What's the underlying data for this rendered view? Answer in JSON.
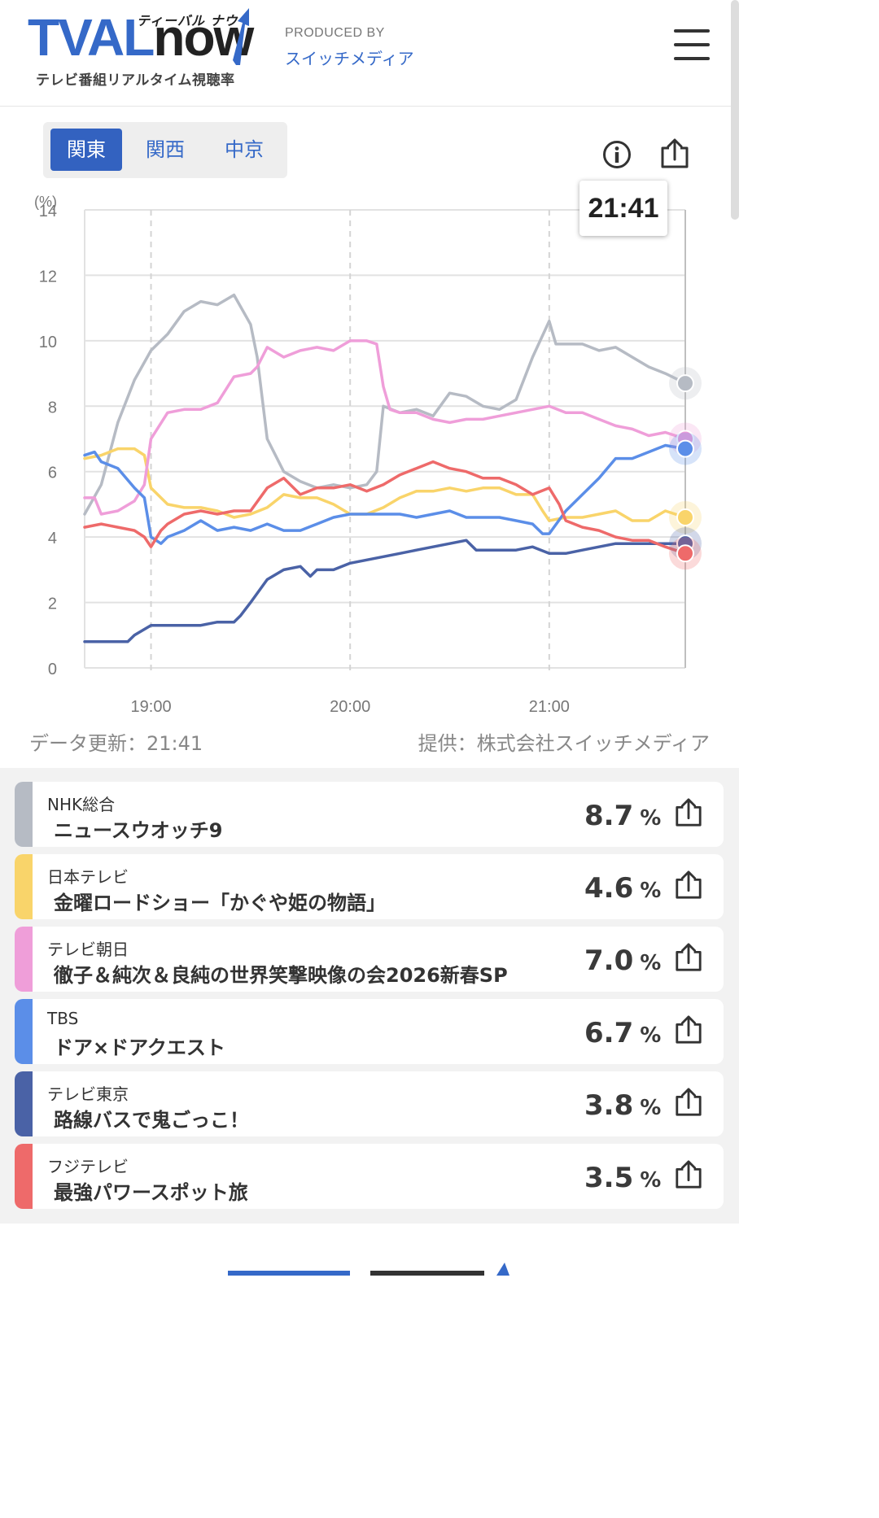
{
  "header": {
    "logo_main_a": "TVAL",
    "logo_main_b": "now",
    "logo_kana": "ティーバル ナウ",
    "logo_sub": "テレビ番組リアルタイム視聴率",
    "producer_label": "PRODUCED BY",
    "producer_name": "スイッチメディア",
    "menu_icon": "hamburger-menu-icon"
  },
  "regions": [
    {
      "label": "関東",
      "active": true
    },
    {
      "label": "関西",
      "active": false
    },
    {
      "label": "中京",
      "active": false
    }
  ],
  "toolbar": {
    "info_icon": "info-icon",
    "share_icon": "share-icon"
  },
  "tooltip_time": "21:41",
  "meta": {
    "updated": "データ更新：21:41",
    "provider": "提供：株式会社スイッチメディア"
  },
  "colors": {
    "nhk": "#b6bbc4",
    "ntv": "#f9d46a",
    "tvasahi": "#ef9ed9",
    "tbs": "#5b8ee8",
    "tvtokyo": "#4a62a6",
    "fuji": "#ee6a6a",
    "accent": "#3362c0"
  },
  "channels": [
    {
      "key": "nhk",
      "channel": "NHK総合",
      "program": "ニュースウオッチ9",
      "value": "8.7"
    },
    {
      "key": "ntv",
      "channel": "日本テレビ",
      "program": "金曜ロードショー「かぐや姫の物語」",
      "value": "4.6"
    },
    {
      "key": "tvasahi",
      "channel": "テレビ朝日",
      "program": "徹子＆純次＆良純の世界笑撃映像の会2026新春SP",
      "value": "7.0"
    },
    {
      "key": "tbs",
      "channel": "TBS",
      "program": "ドア×ドアクエスト",
      "value": "6.7"
    },
    {
      "key": "tvtokyo",
      "channel": "テレビ東京",
      "program": "路線バスで鬼ごっこ！",
      "value": "3.8"
    },
    {
      "key": "fuji",
      "channel": "フジテレビ",
      "program": "最強パワースポット旅",
      "value": "3.5"
    }
  ],
  "percent_sign": "%",
  "chart_data": {
    "type": "line",
    "yunit": "(%)",
    "ylim": [
      0,
      14
    ],
    "yticks": [
      0,
      2,
      4,
      6,
      8,
      10,
      12,
      14
    ],
    "xlim": [
      "18:40",
      "21:41"
    ],
    "xticks": [
      "19:00",
      "20:00",
      "21:00"
    ],
    "grid": true,
    "cursor_time": "21:41",
    "series": [
      {
        "key": "nhk",
        "points": [
          [
            "18:40",
            4.7
          ],
          [
            "18:45",
            5.6
          ],
          [
            "18:50",
            7.5
          ],
          [
            "18:55",
            8.8
          ],
          [
            "19:00",
            9.7
          ],
          [
            "19:05",
            10.2
          ],
          [
            "19:10",
            10.9
          ],
          [
            "19:15",
            11.2
          ],
          [
            "19:20",
            11.1
          ],
          [
            "19:25",
            11.4
          ],
          [
            "19:30",
            10.5
          ],
          [
            "19:32",
            9.5
          ],
          [
            "19:35",
            7.0
          ],
          [
            "19:40",
            6.0
          ],
          [
            "19:45",
            5.7
          ],
          [
            "19:50",
            5.5
          ],
          [
            "19:55",
            5.6
          ],
          [
            "20:00",
            5.5
          ],
          [
            "20:05",
            5.6
          ],
          [
            "20:08",
            6.0
          ],
          [
            "20:10",
            8.0
          ],
          [
            "20:15",
            7.8
          ],
          [
            "20:20",
            7.9
          ],
          [
            "20:25",
            7.7
          ],
          [
            "20:30",
            8.4
          ],
          [
            "20:35",
            8.3
          ],
          [
            "20:40",
            8.0
          ],
          [
            "20:45",
            7.9
          ],
          [
            "20:50",
            8.2
          ],
          [
            "20:55",
            9.5
          ],
          [
            "21:00",
            10.6
          ],
          [
            "21:02",
            9.9
          ],
          [
            "21:05",
            9.9
          ],
          [
            "21:10",
            9.9
          ],
          [
            "21:15",
            9.7
          ],
          [
            "21:20",
            9.8
          ],
          [
            "21:25",
            9.5
          ],
          [
            "21:30",
            9.2
          ],
          [
            "21:35",
            9.0
          ],
          [
            "21:41",
            8.7
          ]
        ]
      },
      {
        "key": "ntv",
        "points": [
          [
            "18:40",
            6.4
          ],
          [
            "18:45",
            6.5
          ],
          [
            "18:50",
            6.7
          ],
          [
            "18:55",
            6.7
          ],
          [
            "18:58",
            6.5
          ],
          [
            "19:00",
            5.5
          ],
          [
            "19:05",
            5.0
          ],
          [
            "19:10",
            4.9
          ],
          [
            "19:15",
            4.9
          ],
          [
            "19:20",
            4.8
          ],
          [
            "19:25",
            4.6
          ],
          [
            "19:30",
            4.7
          ],
          [
            "19:35",
            4.9
          ],
          [
            "19:40",
            5.3
          ],
          [
            "19:45",
            5.2
          ],
          [
            "19:50",
            5.2
          ],
          [
            "19:55",
            5.0
          ],
          [
            "20:00",
            4.7
          ],
          [
            "20:05",
            4.7
          ],
          [
            "20:10",
            4.9
          ],
          [
            "20:15",
            5.2
          ],
          [
            "20:20",
            5.4
          ],
          [
            "20:25",
            5.4
          ],
          [
            "20:30",
            5.5
          ],
          [
            "20:35",
            5.4
          ],
          [
            "20:40",
            5.5
          ],
          [
            "20:45",
            5.5
          ],
          [
            "20:50",
            5.3
          ],
          [
            "20:55",
            5.3
          ],
          [
            "20:58",
            4.8
          ],
          [
            "21:00",
            4.5
          ],
          [
            "21:05",
            4.6
          ],
          [
            "21:10",
            4.6
          ],
          [
            "21:15",
            4.7
          ],
          [
            "21:20",
            4.8
          ],
          [
            "21:25",
            4.5
          ],
          [
            "21:30",
            4.5
          ],
          [
            "21:35",
            4.8
          ],
          [
            "21:41",
            4.6
          ]
        ]
      },
      {
        "key": "tvasahi",
        "points": [
          [
            "18:40",
            5.2
          ],
          [
            "18:43",
            5.2
          ],
          [
            "18:45",
            4.7
          ],
          [
            "18:50",
            4.8
          ],
          [
            "18:55",
            5.1
          ],
          [
            "18:58",
            5.6
          ],
          [
            "19:00",
            7.0
          ],
          [
            "19:05",
            7.8
          ],
          [
            "19:10",
            7.9
          ],
          [
            "19:15",
            7.9
          ],
          [
            "19:20",
            8.1
          ],
          [
            "19:25",
            8.9
          ],
          [
            "19:30",
            9.0
          ],
          [
            "19:32",
            9.2
          ],
          [
            "19:35",
            9.8
          ],
          [
            "19:40",
            9.5
          ],
          [
            "19:45",
            9.7
          ],
          [
            "19:50",
            9.8
          ],
          [
            "19:55",
            9.7
          ],
          [
            "20:00",
            10.0
          ],
          [
            "20:05",
            10.0
          ],
          [
            "20:08",
            9.9
          ],
          [
            "20:10",
            8.6
          ],
          [
            "20:12",
            7.9
          ],
          [
            "20:15",
            7.8
          ],
          [
            "20:20",
            7.8
          ],
          [
            "20:25",
            7.6
          ],
          [
            "20:30",
            7.5
          ],
          [
            "20:35",
            7.6
          ],
          [
            "20:40",
            7.6
          ],
          [
            "20:45",
            7.7
          ],
          [
            "20:50",
            7.8
          ],
          [
            "20:55",
            7.9
          ],
          [
            "21:00",
            8.0
          ],
          [
            "21:05",
            7.8
          ],
          [
            "21:10",
            7.8
          ],
          [
            "21:15",
            7.6
          ],
          [
            "21:20",
            7.4
          ],
          [
            "21:25",
            7.3
          ],
          [
            "21:30",
            7.1
          ],
          [
            "21:35",
            7.2
          ],
          [
            "21:41",
            7.0
          ]
        ]
      },
      {
        "key": "tbs",
        "points": [
          [
            "18:40",
            6.5
          ],
          [
            "18:43",
            6.6
          ],
          [
            "18:45",
            6.3
          ],
          [
            "18:50",
            6.1
          ],
          [
            "18:55",
            5.5
          ],
          [
            "18:58",
            5.2
          ],
          [
            "19:00",
            4.0
          ],
          [
            "19:03",
            3.8
          ],
          [
            "19:05",
            4.0
          ],
          [
            "19:10",
            4.2
          ],
          [
            "19:15",
            4.5
          ],
          [
            "19:20",
            4.2
          ],
          [
            "19:25",
            4.3
          ],
          [
            "19:30",
            4.2
          ],
          [
            "19:35",
            4.4
          ],
          [
            "19:40",
            4.2
          ],
          [
            "19:45",
            4.2
          ],
          [
            "19:50",
            4.4
          ],
          [
            "19:55",
            4.6
          ],
          [
            "20:00",
            4.7
          ],
          [
            "20:05",
            4.7
          ],
          [
            "20:10",
            4.7
          ],
          [
            "20:15",
            4.7
          ],
          [
            "20:20",
            4.6
          ],
          [
            "20:25",
            4.7
          ],
          [
            "20:30",
            4.8
          ],
          [
            "20:35",
            4.6
          ],
          [
            "20:40",
            4.6
          ],
          [
            "20:45",
            4.6
          ],
          [
            "20:50",
            4.5
          ],
          [
            "20:55",
            4.4
          ],
          [
            "20:58",
            4.1
          ],
          [
            "21:00",
            4.1
          ],
          [
            "21:05",
            4.8
          ],
          [
            "21:10",
            5.3
          ],
          [
            "21:15",
            5.8
          ],
          [
            "21:20",
            6.4
          ],
          [
            "21:25",
            6.4
          ],
          [
            "21:30",
            6.6
          ],
          [
            "21:35",
            6.8
          ],
          [
            "21:41",
            6.7
          ]
        ]
      },
      {
        "key": "tvtokyo",
        "points": [
          [
            "18:40",
            0.8
          ],
          [
            "18:45",
            0.8
          ],
          [
            "18:50",
            0.8
          ],
          [
            "18:53",
            0.8
          ],
          [
            "18:55",
            1.0
          ],
          [
            "19:00",
            1.3
          ],
          [
            "19:05",
            1.3
          ],
          [
            "19:10",
            1.3
          ],
          [
            "19:15",
            1.3
          ],
          [
            "19:20",
            1.4
          ],
          [
            "19:25",
            1.4
          ],
          [
            "19:27",
            1.6
          ],
          [
            "19:30",
            2.0
          ],
          [
            "19:35",
            2.7
          ],
          [
            "19:40",
            3.0
          ],
          [
            "19:45",
            3.1
          ],
          [
            "19:48",
            2.8
          ],
          [
            "19:50",
            3.0
          ],
          [
            "19:55",
            3.0
          ],
          [
            "20:00",
            3.2
          ],
          [
            "20:05",
            3.3
          ],
          [
            "20:10",
            3.4
          ],
          [
            "20:15",
            3.5
          ],
          [
            "20:20",
            3.6
          ],
          [
            "20:25",
            3.7
          ],
          [
            "20:30",
            3.8
          ],
          [
            "20:35",
            3.9
          ],
          [
            "20:38",
            3.6
          ],
          [
            "20:40",
            3.6
          ],
          [
            "20:45",
            3.6
          ],
          [
            "20:50",
            3.6
          ],
          [
            "20:55",
            3.7
          ],
          [
            "21:00",
            3.5
          ],
          [
            "21:05",
            3.5
          ],
          [
            "21:10",
            3.6
          ],
          [
            "21:15",
            3.7
          ],
          [
            "21:20",
            3.8
          ],
          [
            "21:25",
            3.8
          ],
          [
            "21:30",
            3.8
          ],
          [
            "21:35",
            3.8
          ],
          [
            "21:41",
            3.8
          ]
        ]
      },
      {
        "key": "fuji",
        "points": [
          [
            "18:40",
            4.3
          ],
          [
            "18:45",
            4.4
          ],
          [
            "18:50",
            4.3
          ],
          [
            "18:55",
            4.2
          ],
          [
            "18:58",
            4.0
          ],
          [
            "19:00",
            3.7
          ],
          [
            "19:03",
            4.2
          ],
          [
            "19:05",
            4.4
          ],
          [
            "19:10",
            4.7
          ],
          [
            "19:15",
            4.8
          ],
          [
            "19:20",
            4.7
          ],
          [
            "19:25",
            4.8
          ],
          [
            "19:30",
            4.8
          ],
          [
            "19:35",
            5.5
          ],
          [
            "19:40",
            5.8
          ],
          [
            "19:45",
            5.3
          ],
          [
            "19:50",
            5.5
          ],
          [
            "19:55",
            5.5
          ],
          [
            "20:00",
            5.6
          ],
          [
            "20:05",
            5.4
          ],
          [
            "20:10",
            5.6
          ],
          [
            "20:15",
            5.9
          ],
          [
            "20:20",
            6.1
          ],
          [
            "20:25",
            6.3
          ],
          [
            "20:30",
            6.1
          ],
          [
            "20:35",
            6.0
          ],
          [
            "20:40",
            5.8
          ],
          [
            "20:45",
            5.8
          ],
          [
            "20:50",
            5.6
          ],
          [
            "20:55",
            5.3
          ],
          [
            "21:00",
            5.5
          ],
          [
            "21:03",
            5.0
          ],
          [
            "21:05",
            4.5
          ],
          [
            "21:10",
            4.3
          ],
          [
            "21:15",
            4.2
          ],
          [
            "21:20",
            4.0
          ],
          [
            "21:25",
            3.9
          ],
          [
            "21:30",
            3.9
          ],
          [
            "21:35",
            3.7
          ],
          [
            "21:41",
            3.5
          ]
        ]
      }
    ]
  }
}
